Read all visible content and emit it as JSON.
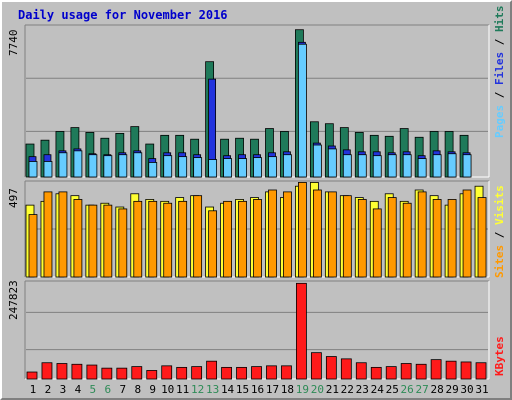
{
  "title": "Daily usage for November 2016",
  "colors": {
    "title": "#0000cc",
    "pages": "#66ccff",
    "files": "#2233dd",
    "hits": "#1f7a5a",
    "sites": "#ff9900",
    "visits": "#ffff33",
    "kbytes": "#ff1a1a",
    "weekend_label": "#2e8b57",
    "grid": "#808080",
    "plot_bg": "#c0c0c0"
  },
  "chart_data": [
    {
      "type": "bar",
      "panel": "hits_files_pages",
      "y_max_label": "7740",
      "ylim": [
        0,
        7740
      ],
      "legend": [
        "Pages",
        "Files",
        "Hits"
      ],
      "categories": [
        "1",
        "2",
        "3",
        "4",
        "5",
        "6",
        "7",
        "8",
        "9",
        "10",
        "11",
        "12",
        "13",
        "14",
        "15",
        "16",
        "17",
        "18",
        "19",
        "20",
        "21",
        "22",
        "23",
        "24",
        "25",
        "26",
        "27",
        "28",
        "29",
        "30",
        "31"
      ],
      "series": [
        {
          "name": "Hits",
          "values": [
            1700,
            1900,
            2350,
            2550,
            2300,
            2000,
            2250,
            2600,
            1700,
            2150,
            2150,
            1950,
            5950,
            1950,
            2000,
            1950,
            2500,
            2350,
            7600,
            2850,
            2750,
            2550,
            2300,
            2150,
            2100,
            2500,
            2050,
            2350,
            2350,
            2150,
            0
          ]
        },
        {
          "name": "Files",
          "values": [
            1050,
            1150,
            1350,
            1450,
            1200,
            1150,
            1250,
            1350,
            950,
            1250,
            1250,
            1150,
            5050,
            1100,
            1150,
            1150,
            1250,
            1300,
            6950,
            1750,
            1600,
            1400,
            1300,
            1300,
            1250,
            1300,
            1100,
            1350,
            1300,
            1250,
            0
          ]
        },
        {
          "name": "Pages",
          "values": [
            800,
            800,
            1250,
            1350,
            1150,
            1100,
            1150,
            1250,
            750,
            1100,
            1050,
            1000,
            900,
            950,
            950,
            1000,
            1050,
            1150,
            6850,
            1650,
            1450,
            1150,
            1150,
            1100,
            1150,
            1150,
            950,
            1150,
            1200,
            1150,
            0
          ]
        }
      ]
    },
    {
      "type": "bar",
      "panel": "visits_sites",
      "y_max_label": "497",
      "ylim": [
        0,
        497
      ],
      "legend": [
        "Sites",
        "Visits"
      ],
      "categories": [
        "1",
        "2",
        "3",
        "4",
        "5",
        "6",
        "7",
        "8",
        "9",
        "10",
        "11",
        "12",
        "13",
        "14",
        "15",
        "16",
        "17",
        "18",
        "19",
        "20",
        "21",
        "22",
        "23",
        "24",
        "25",
        "26",
        "27",
        "28",
        "29",
        "30",
        "31"
      ],
      "series": [
        {
          "name": "Visits",
          "values": [
            380,
            400,
            440,
            430,
            380,
            390,
            370,
            440,
            410,
            400,
            420,
            430,
            370,
            390,
            410,
            420,
            450,
            420,
            480,
            500,
            450,
            430,
            420,
            400,
            440,
            400,
            460,
            430,
            380,
            440,
            480
          ]
        },
        {
          "name": "Sites",
          "values": [
            330,
            450,
            450,
            410,
            380,
            380,
            360,
            400,
            400,
            390,
            400,
            430,
            350,
            400,
            400,
            410,
            460,
            450,
            500,
            460,
            450,
            430,
            410,
            360,
            420,
            390,
            450,
            410,
            410,
            460,
            420
          ]
        }
      ]
    },
    {
      "type": "bar",
      "panel": "kbytes",
      "y_max_label": "247823",
      "ylim": [
        0,
        247823
      ],
      "legend": [
        "KBytes"
      ],
      "categories": [
        "1",
        "2",
        "3",
        "4",
        "5",
        "6",
        "7",
        "8",
        "9",
        "10",
        "11",
        "12",
        "13",
        "14",
        "15",
        "16",
        "17",
        "18",
        "19",
        "20",
        "21",
        "22",
        "23",
        "24",
        "25",
        "26",
        "27",
        "28",
        "29",
        "30",
        "31"
      ],
      "series": [
        {
          "name": "KBytes",
          "values": [
            18000,
            42000,
            40000,
            38000,
            36000,
            28000,
            28000,
            32000,
            22000,
            34000,
            30000,
            32000,
            46000,
            30000,
            30000,
            32000,
            34000,
            34000,
            247000,
            68000,
            58000,
            52000,
            42000,
            30000,
            32000,
            40000,
            38000,
            50000,
            46000,
            44000,
            42000
          ]
        }
      ]
    }
  ],
  "x_labels": [
    "1",
    "2",
    "3",
    "4",
    "5",
    "6",
    "7",
    "8",
    "9",
    "10",
    "11",
    "12",
    "13",
    "14",
    "15",
    "16",
    "17",
    "18",
    "19",
    "20",
    "21",
    "22",
    "23",
    "24",
    "25",
    "26",
    "27",
    "28",
    "29",
    "30",
    "31"
  ],
  "weekend_days": [
    "5",
    "6",
    "12",
    "13",
    "19",
    "20",
    "26",
    "27"
  ]
}
